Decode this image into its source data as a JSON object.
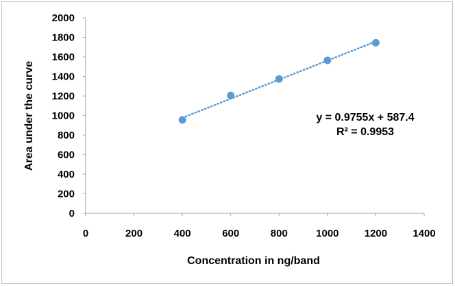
{
  "chart_data": {
    "type": "scatter",
    "xlabel": "Concentration in ng/band",
    "ylabel": "Area under the curve",
    "xlim": [
      0,
      1400
    ],
    "ylim": [
      0,
      2000
    ],
    "x_ticks": [
      "0",
      "200",
      "400",
      "600",
      "800",
      "1000",
      "1200",
      "1400"
    ],
    "y_ticks": [
      "0",
      "200",
      "400",
      "600",
      "800",
      "1000",
      "1200",
      "1400",
      "1600",
      "1800",
      "2000"
    ],
    "grid": false,
    "legend": "none",
    "series": [
      {
        "x": [
          400,
          600,
          800,
          1000,
          1200
        ],
        "y": [
          955,
          1205,
          1375,
          1565,
          1745
        ],
        "color": "#5b9bd5"
      }
    ],
    "trendline": {
      "type": "linear",
      "style": "dotted",
      "slope": 0.9755,
      "intercept": 587.4,
      "x_range": [
        400,
        1200
      ],
      "color": "#5b9bd5"
    },
    "annotations": {
      "equation": "y = 0.9755x + 587.4",
      "r_squared": "R² = 0.9953"
    }
  }
}
